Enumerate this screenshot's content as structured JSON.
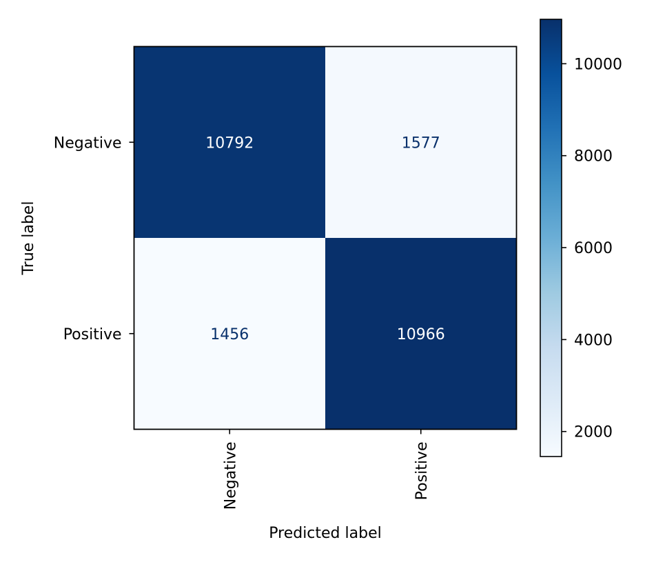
{
  "chart_data": {
    "type": "heatmap",
    "title": "",
    "xlabel": "Predicted label",
    "ylabel": "True label",
    "x_categories": [
      "Negative",
      "Positive"
    ],
    "y_categories": [
      "Negative",
      "Positive"
    ],
    "values": [
      [
        10792,
        1577
      ],
      [
        1456,
        10966
      ]
    ],
    "colormap": "Blues",
    "color_range": [
      1456,
      10966
    ],
    "colorbar": {
      "ticks": [
        2000,
        4000,
        6000,
        8000,
        10000
      ],
      "tick_labels": [
        "2000",
        "4000",
        "6000",
        "8000",
        "10000"
      ]
    },
    "text_color_dark_cell": "#ffffff",
    "text_color_light_cell": "#08306b",
    "grid": false,
    "legend": "none"
  }
}
